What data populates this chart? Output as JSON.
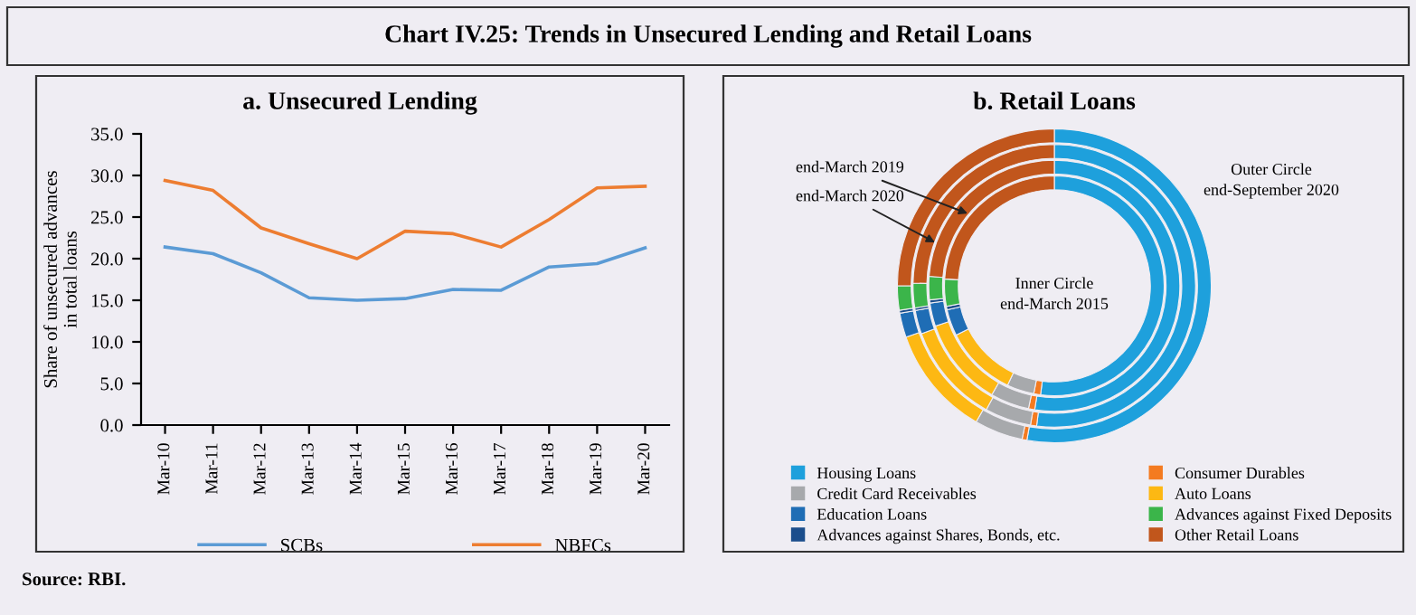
{
  "chart_data": [
    {
      "type": "line",
      "title": "Chart IV.25: Trends in Unsecured Lending and Retail Loans",
      "subtitle": "a. Unsecured Lending",
      "ylabel": "Share of unsecured advances\nin total loans",
      "categories": [
        "Mar-10",
        "Mar-11",
        "Mar-12",
        "Mar-13",
        "Mar-14",
        "Mar-15",
        "Mar-16",
        "Mar-17",
        "Mar-18",
        "Mar-19",
        "Mar-20"
      ],
      "series": [
        {
          "name": "SCBs",
          "color": "#5b9bd5",
          "values": [
            21.4,
            20.6,
            18.3,
            15.3,
            15.0,
            15.2,
            16.3,
            16.2,
            19.0,
            19.4,
            21.3
          ]
        },
        {
          "name": "NBFCs",
          "color": "#ed7d31",
          "values": [
            29.4,
            28.2,
            23.7,
            21.8,
            20.0,
            23.3,
            23.0,
            21.4,
            24.7,
            28.5,
            28.7
          ]
        }
      ],
      "ylim": [
        0,
        35
      ],
      "yticks": [
        {
          "value": 0,
          "label": "0.0"
        },
        {
          "value": 5,
          "label": "5.0"
        },
        {
          "value": 10,
          "label": "10.0"
        },
        {
          "value": 15,
          "label": "15.0"
        },
        {
          "value": 20,
          "label": "20.0"
        },
        {
          "value": 25,
          "label": "25.0"
        },
        {
          "value": 30,
          "label": "30.0"
        },
        {
          "value": 35,
          "label": "35.0"
        }
      ],
      "grid": false,
      "legend": "bottom",
      "marker": "none",
      "line_style": "solid",
      "annotations": [
        "Source: RBI."
      ]
    },
    {
      "type": "donut",
      "title": "b. Retail Loans",
      "categories": [
        "Housing Loans",
        "Consumer Durables",
        "Credit Card Receivables",
        "Auto Loans",
        "Education Loans",
        "Advances against Shares, Bonds, etc.",
        "Advances against Fixed Deposits",
        "Other Retail Loans"
      ],
      "colors": [
        "#1ea0dc",
        "#f47b20",
        "#a7a9ac",
        "#fdb813",
        "#1f6db5",
        "#1b4e8c",
        "#3bb54a",
        "#c1561c"
      ],
      "series": [
        {
          "values": [
            52.0,
            1.0,
            4.0,
            10.6,
            3.9,
            0.5,
            4.0,
            24.0
          ]
        },
        {
          "values": [
            52.5,
            0.8,
            5.0,
            11.5,
            3.0,
            0.4,
            3.0,
            23.8
          ]
        },
        {
          "values": [
            52.0,
            0.7,
            5.3,
            11.5,
            2.7,
            0.3,
            2.8,
            24.7
          ]
        },
        {
          "values": [
            52.8,
            0.5,
            5.0,
            11.4,
            2.5,
            0.3,
            2.5,
            25.0
          ]
        }
      ],
      "legend": "bottom",
      "annotations": [
        "end-March 2019",
        "end-March 2020",
        "Outer Circle\nend-September 2020",
        "Inner Circle\nend-March 2015"
      ]
    }
  ]
}
